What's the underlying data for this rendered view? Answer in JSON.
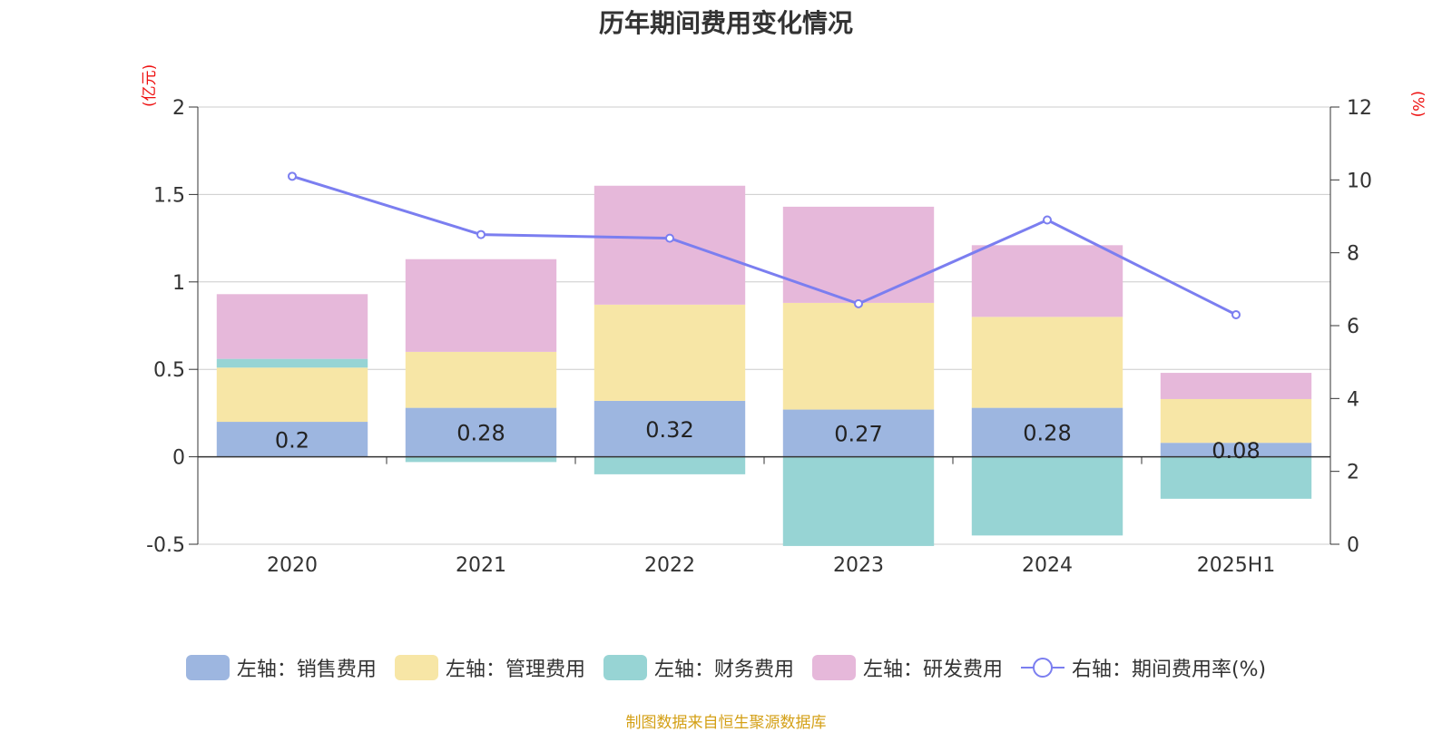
{
  "title": "历年期间费用变化情况",
  "units": {
    "left": "(亿元)",
    "right": "(%)"
  },
  "source": "制图数据来自恒生聚源数据库",
  "colors": {
    "sales": "#9db6e0",
    "admin": "#f7e6a6",
    "finance": "#97d4d4",
    "rd": "#e6b8da",
    "rate": "#7b7ef0"
  },
  "legend": [
    {
      "label": "左轴：销售费用",
      "key": "sales",
      "kind": "bar"
    },
    {
      "label": "左轴：管理费用",
      "key": "admin",
      "kind": "bar"
    },
    {
      "label": "左轴：财务费用",
      "key": "finance",
      "kind": "bar"
    },
    {
      "label": "左轴：研发费用",
      "key": "rd",
      "kind": "bar"
    },
    {
      "label": "右轴：期间费用率(%)",
      "key": "rate",
      "kind": "line"
    }
  ],
  "chart_data": {
    "type": "bar",
    "categories": [
      "2020",
      "2021",
      "2022",
      "2023",
      "2024",
      "2025H1"
    ],
    "left_axis": {
      "ylim": [
        -0.5,
        2
      ],
      "ticks": [
        "-0.5",
        "0",
        "0.5",
        "1",
        "1.5",
        "2"
      ]
    },
    "right_axis": {
      "ylim": [
        0,
        12
      ],
      "ticks": [
        "0",
        "2",
        "4",
        "6",
        "8",
        "10",
        "12"
      ]
    },
    "series": [
      {
        "name": "左轴：销售费用",
        "key": "sales",
        "axis": "left",
        "values": [
          0.2,
          0.28,
          0.32,
          0.27,
          0.28,
          0.08
        ],
        "labels": [
          "0.2",
          "0.28",
          "0.32",
          "0.27",
          "0.28",
          "0.08"
        ]
      },
      {
        "name": "左轴：管理费用",
        "key": "admin",
        "axis": "left",
        "values": [
          0.31,
          0.32,
          0.55,
          0.61,
          0.52,
          0.25
        ]
      },
      {
        "name": "左轴：财务费用",
        "key": "finance",
        "axis": "left",
        "values": [
          0.05,
          -0.03,
          -0.1,
          -0.51,
          -0.45,
          -0.24
        ]
      },
      {
        "name": "左轴：研发费用",
        "key": "rd",
        "axis": "left",
        "values": [
          0.37,
          0.53,
          0.68,
          0.55,
          0.41,
          0.15
        ]
      },
      {
        "name": "右轴：期间费用率(%)",
        "key": "rate",
        "axis": "right",
        "type": "line",
        "values": [
          10.1,
          8.5,
          8.4,
          6.6,
          8.9,
          6.3
        ]
      }
    ],
    "grid": true,
    "legend_position": "bottom"
  }
}
